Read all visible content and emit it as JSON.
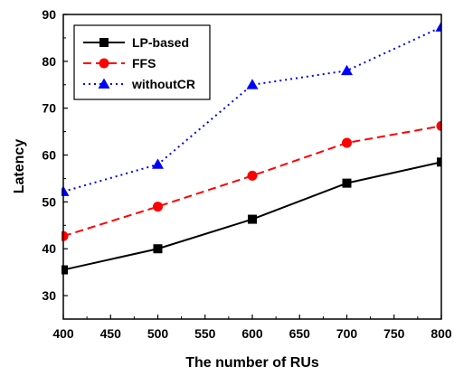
{
  "chart_data": {
    "type": "line",
    "title": "",
    "xlabel": "The number of RUs",
    "ylabel": "Latency",
    "xlim": [
      400,
      800
    ],
    "ylim": [
      25,
      90
    ],
    "xticks": [
      400,
      450,
      500,
      550,
      600,
      650,
      700,
      750,
      800
    ],
    "yticks": [
      30,
      40,
      50,
      60,
      70,
      80,
      90
    ],
    "grid": false,
    "legend_position": "top-left",
    "series": [
      {
        "name": "LP-based",
        "x": [
          400,
          500,
          600,
          700,
          800
        ],
        "y": [
          35.5,
          40,
          46.3,
          54,
          58.5
        ],
        "color": "#000000",
        "line_style": "solid",
        "marker": "square"
      },
      {
        "name": "FFS",
        "x": [
          400,
          500,
          600,
          700,
          800
        ],
        "y": [
          42.7,
          49,
          55.6,
          62.6,
          66.2
        ],
        "color": "#ff0000",
        "line_style": "dashed",
        "marker": "circle"
      },
      {
        "name": "withoutCR",
        "x": [
          400,
          500,
          600,
          700,
          800
        ],
        "y": [
          52.2,
          58,
          75,
          78,
          87.3
        ],
        "color": "#0000ff",
        "line_style": "dotted",
        "marker": "triangle"
      }
    ]
  }
}
